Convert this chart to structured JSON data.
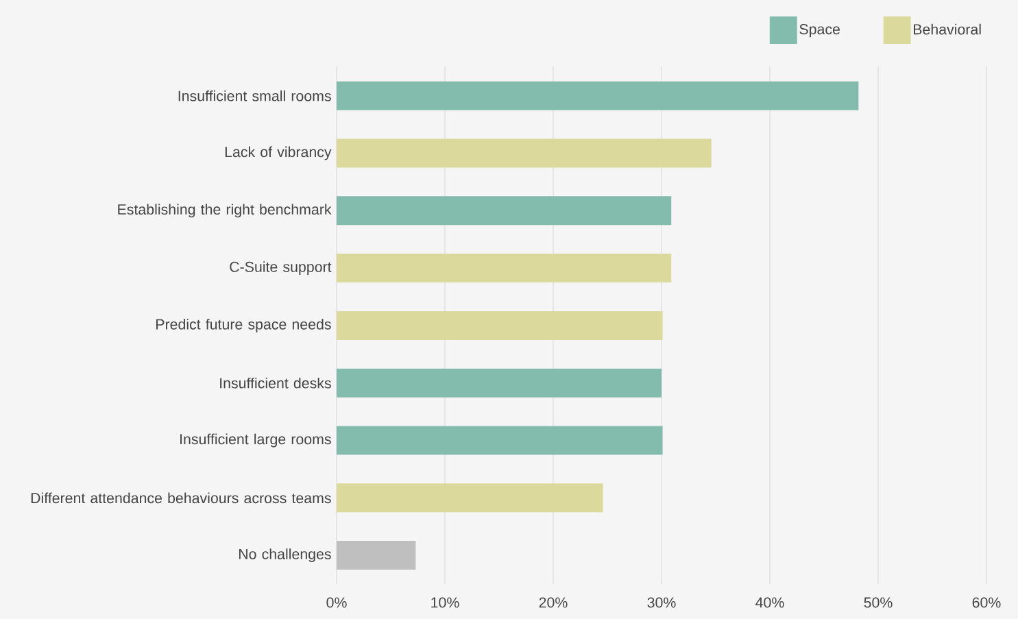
{
  "chart_data": {
    "type": "bar",
    "orientation": "horizontal",
    "categories": [
      "Insufficient small rooms",
      "Lack of vibrancy",
      "Establishing the right benchmark",
      "C-Suite support",
      "Predict future space needs",
      "Insufficient desks",
      "Insufficient large rooms",
      "Different attendance behaviours across teams",
      "No challenges"
    ],
    "series": [
      {
        "name": "Space",
        "color": "#83bbac",
        "values": [
          48.2,
          null,
          30.9,
          null,
          null,
          30.0,
          30.1,
          null,
          null
        ]
      },
      {
        "name": "Behavioral",
        "color": "#dcd99c",
        "values": [
          null,
          34.6,
          null,
          30.9,
          30.1,
          null,
          null,
          24.6,
          null
        ]
      },
      {
        "color": "#bfbfbf",
        "values": [
          null,
          null,
          null,
          null,
          null,
          null,
          null,
          null,
          7.3
        ]
      }
    ],
    "xlim": [
      0,
      60
    ],
    "xticks": [
      {
        "value": 0,
        "label": "0%"
      },
      {
        "value": 10,
        "label": "10%"
      },
      {
        "value": 20,
        "label": "20%"
      },
      {
        "value": 30,
        "label": "30%"
      },
      {
        "value": 40,
        "label": "40%"
      },
      {
        "value": 50,
        "label": "50%"
      },
      {
        "value": 60,
        "label": "60%"
      }
    ],
    "grid": "x",
    "legend": "top right"
  }
}
